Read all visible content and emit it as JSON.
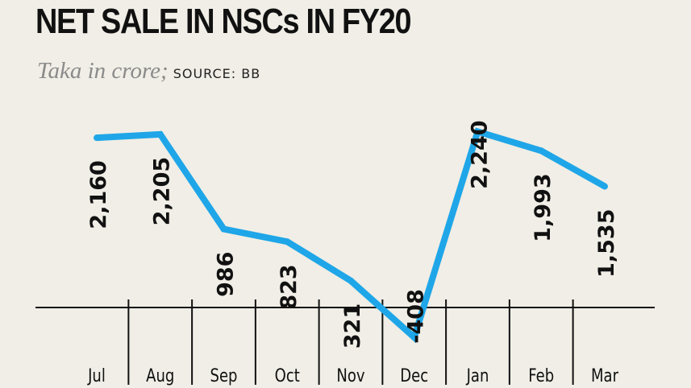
{
  "header": {
    "title": "NET SALE IN NSCs IN FY20",
    "units": "Taka in crore;",
    "source": "SOURCE: BB"
  },
  "chart_data": {
    "type": "line",
    "title": "NET SALE IN NSCs IN FY20",
    "ylabel": "Taka in crore",
    "xlabel": "",
    "categories": [
      "Jul",
      "Aug",
      "Sep",
      "Oct",
      "Nov",
      "Dec",
      "Jan",
      "Feb",
      "Mar"
    ],
    "values": [
      2160,
      2205,
      986,
      823,
      321,
      -408,
      2240,
      1993,
      1535
    ],
    "labels": [
      "2,160",
      "2,205",
      "986",
      "823",
      "321",
      "-408",
      "2,240",
      "1,993",
      "1,535"
    ],
    "ylim": [
      -500,
      2400
    ],
    "grid": false,
    "line_color": "#1fa6e8"
  }
}
